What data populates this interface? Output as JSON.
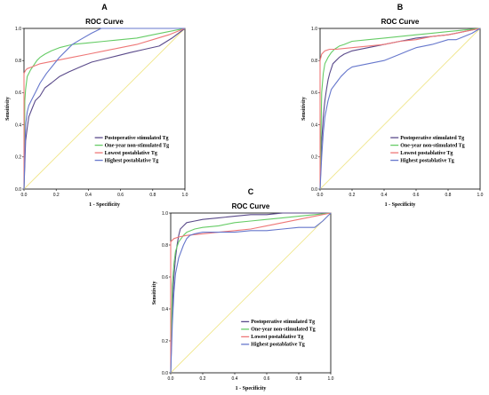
{
  "chart_data": [
    {
      "panel": "A",
      "type": "line",
      "title": "ROC Curve",
      "xlabel": "1 - Specificity",
      "ylabel": "Sensitivity",
      "xlim": [
        0,
        1
      ],
      "ylim": [
        0,
        1
      ],
      "xticks": [
        "0.0",
        "0.2",
        "0.4",
        "0.6",
        "0.8",
        "1.0"
      ],
      "yticks": [
        "0.0",
        "0.2",
        "0.4",
        "0.6",
        "0.8",
        "1.0"
      ],
      "legend_position": "bottom-center",
      "reference_line": {
        "color": "#f0e68c",
        "x": [
          0,
          1
        ],
        "y": [
          0,
          1
        ]
      },
      "series": [
        {
          "name": "Postoperative stimulated Tg",
          "color": "#5a4a8a",
          "x": [
            0,
            0.01,
            0.02,
            0.03,
            0.05,
            0.07,
            0.1,
            0.13,
            0.17,
            0.22,
            0.28,
            0.35,
            0.42,
            0.5,
            0.58,
            0.66,
            0.75,
            0.84,
            0.92,
            1
          ],
          "y": [
            0,
            0.3,
            0.38,
            0.45,
            0.5,
            0.55,
            0.58,
            0.63,
            0.66,
            0.7,
            0.73,
            0.76,
            0.79,
            0.81,
            0.83,
            0.85,
            0.87,
            0.89,
            0.94,
            1
          ]
        },
        {
          "name": "One-year non-stimulated Tg",
          "color": "#66cc66",
          "x": [
            0,
            0.005,
            0.01,
            0.02,
            0.04,
            0.06,
            0.08,
            0.1,
            0.13,
            0.17,
            0.22,
            0.3,
            0.4,
            0.5,
            0.6,
            0.7,
            0.8,
            0.9,
            1
          ],
          "y": [
            0,
            0.55,
            0.62,
            0.7,
            0.74,
            0.77,
            0.8,
            0.82,
            0.84,
            0.86,
            0.88,
            0.9,
            0.91,
            0.92,
            0.93,
            0.94,
            0.96,
            0.98,
            1
          ]
        },
        {
          "name": "Lowest postablative Tg",
          "color": "#ee7777",
          "x": [
            0,
            0,
            0.01,
            0.02,
            0.05,
            0.1,
            0.2,
            0.3,
            0.4,
            0.5,
            0.6,
            0.7,
            0.8,
            0.9,
            1
          ],
          "y": [
            0,
            0.72,
            0.74,
            0.75,
            0.76,
            0.78,
            0.8,
            0.82,
            0.84,
            0.86,
            0.88,
            0.9,
            0.93,
            0.96,
            1
          ]
        },
        {
          "name": "Highest postablative Tg",
          "color": "#6677cc",
          "x": [
            0,
            0.01,
            0.02,
            0.03,
            0.05,
            0.07,
            0.1,
            0.14,
            0.18,
            0.22,
            0.26,
            0.3,
            0.35,
            0.42,
            0.48,
            1
          ],
          "y": [
            0,
            0.4,
            0.48,
            0.52,
            0.56,
            0.6,
            0.66,
            0.72,
            0.77,
            0.82,
            0.86,
            0.9,
            0.93,
            0.97,
            1,
            1
          ]
        }
      ]
    },
    {
      "panel": "B",
      "type": "line",
      "title": "ROC Curve",
      "xlabel": "1 - Specificity",
      "ylabel": "Sensitivity",
      "xlim": [
        0,
        1
      ],
      "ylim": [
        0,
        1
      ],
      "xticks": [
        "0.0",
        "0.2",
        "0.4",
        "0.6",
        "0.8",
        "1.0"
      ],
      "yticks": [
        "0.0",
        "0.2",
        "0.4",
        "0.6",
        "0.8",
        "1.0"
      ],
      "legend_position": "bottom-center",
      "reference_line": {
        "color": "#f0e68c",
        "x": [
          0,
          1
        ],
        "y": [
          0,
          1
        ]
      },
      "series": [
        {
          "name": "Postoperative stimulated Tg",
          "color": "#5a4a8a",
          "x": [
            0,
            0.01,
            0.02,
            0.03,
            0.04,
            0.05,
            0.06,
            0.07,
            0.08,
            0.1,
            0.12,
            0.15,
            0.2,
            0.3,
            0.4,
            0.5,
            0.6,
            0.7,
            0.8,
            0.9,
            1
          ],
          "y": [
            0,
            0.3,
            0.45,
            0.55,
            0.62,
            0.68,
            0.72,
            0.75,
            0.78,
            0.8,
            0.82,
            0.84,
            0.86,
            0.88,
            0.9,
            0.92,
            0.94,
            0.95,
            0.96,
            0.98,
            1
          ]
        },
        {
          "name": "One-year non-stimulated Tg",
          "color": "#66cc66",
          "x": [
            0,
            0.01,
            0.02,
            0.03,
            0.05,
            0.07,
            0.09,
            0.12,
            0.15,
            0.2,
            0.3,
            0.4,
            0.5,
            0.6,
            0.7,
            0.8,
            0.9,
            1
          ],
          "y": [
            0,
            0.6,
            0.72,
            0.78,
            0.82,
            0.85,
            0.87,
            0.89,
            0.9,
            0.92,
            0.93,
            0.94,
            0.95,
            0.96,
            0.97,
            0.98,
            0.99,
            1
          ]
        },
        {
          "name": "Lowest postablative Tg",
          "color": "#ee7777",
          "x": [
            0,
            0,
            0.01,
            0.03,
            0.06,
            0.1,
            0.2,
            0.3,
            0.4,
            0.5,
            0.6,
            0.7,
            0.8,
            0.9,
            1
          ],
          "y": [
            0,
            0.8,
            0.84,
            0.86,
            0.87,
            0.87,
            0.88,
            0.89,
            0.9,
            0.92,
            0.93,
            0.95,
            0.96,
            0.98,
            1
          ]
        },
        {
          "name": "Highest postablative Tg",
          "color": "#6677cc",
          "x": [
            0,
            0.01,
            0.02,
            0.03,
            0.05,
            0.07,
            0.1,
            0.13,
            0.17,
            0.2,
            0.3,
            0.4,
            0.5,
            0.55,
            0.6,
            0.7,
            0.8,
            0.85,
            0.9,
            0.95,
            1
          ],
          "y": [
            0,
            0.2,
            0.35,
            0.45,
            0.55,
            0.62,
            0.66,
            0.7,
            0.74,
            0.76,
            0.78,
            0.8,
            0.84,
            0.86,
            0.88,
            0.9,
            0.93,
            0.93,
            0.95,
            0.97,
            1
          ]
        }
      ]
    },
    {
      "panel": "C",
      "type": "line",
      "title": "ROC Curve",
      "xlabel": "1 - Specificity",
      "ylabel": "Sensitivity",
      "xlim": [
        0,
        1
      ],
      "ylim": [
        0,
        1
      ],
      "xticks": [
        "0.0",
        "0.2",
        "0.4",
        "0.6",
        "0.8",
        "1.0"
      ],
      "yticks": [
        "0.0",
        "0.2",
        "0.4",
        "0.6",
        "0.8",
        "1.0"
      ],
      "legend_position": "bottom-center",
      "reference_line": {
        "color": "#f0e68c",
        "x": [
          0,
          1
        ],
        "y": [
          0,
          1
        ]
      },
      "series": [
        {
          "name": "Postoperative stimulated Tg",
          "color": "#5a4a8a",
          "x": [
            0,
            0.01,
            0.02,
            0.03,
            0.04,
            0.05,
            0.06,
            0.08,
            0.1,
            0.15,
            0.2,
            0.3,
            0.4,
            0.5,
            0.6,
            0.7,
            0.8,
            0.9,
            1
          ],
          "y": [
            0,
            0.4,
            0.6,
            0.72,
            0.8,
            0.86,
            0.9,
            0.92,
            0.94,
            0.95,
            0.96,
            0.97,
            0.98,
            0.99,
            0.99,
            1,
            1,
            1,
            1
          ]
        },
        {
          "name": "One-year non-stimulated Tg",
          "color": "#66cc66",
          "x": [
            0,
            0.01,
            0.02,
            0.03,
            0.05,
            0.08,
            0.1,
            0.15,
            0.2,
            0.3,
            0.4,
            0.5,
            0.6,
            0.7,
            0.8,
            0.9,
            1
          ],
          "y": [
            0,
            0.55,
            0.68,
            0.76,
            0.82,
            0.86,
            0.88,
            0.9,
            0.91,
            0.92,
            0.94,
            0.95,
            0.96,
            0.97,
            0.98,
            0.99,
            1
          ]
        },
        {
          "name": "Lowest postablative Tg",
          "color": "#ee7777",
          "x": [
            0,
            0,
            0.02,
            0.05,
            0.1,
            0.2,
            0.3,
            0.4,
            0.5,
            0.6,
            0.7,
            0.8,
            0.9,
            1
          ],
          "y": [
            0,
            0.82,
            0.84,
            0.85,
            0.86,
            0.87,
            0.88,
            0.89,
            0.9,
            0.92,
            0.94,
            0.96,
            0.98,
            1
          ]
        },
        {
          "name": "Highest postablative Tg",
          "color": "#6677cc",
          "x": [
            0,
            0.01,
            0.02,
            0.03,
            0.05,
            0.08,
            0.1,
            0.12,
            0.15,
            0.2,
            0.3,
            0.4,
            0.5,
            0.6,
            0.7,
            0.8,
            0.9,
            0.95,
            1
          ],
          "y": [
            0,
            0.3,
            0.5,
            0.62,
            0.72,
            0.8,
            0.84,
            0.86,
            0.87,
            0.88,
            0.88,
            0.88,
            0.89,
            0.89,
            0.9,
            0.91,
            0.91,
            0.95,
            1
          ]
        }
      ]
    }
  ]
}
